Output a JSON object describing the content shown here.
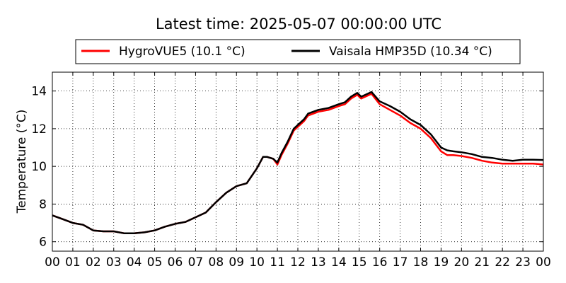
{
  "chart_data": {
    "type": "line",
    "title": "Latest time: 2025-05-07 00:00:00 UTC",
    "xlabel": "",
    "ylabel": "Temperature (°C)",
    "xlim": [
      0,
      24
    ],
    "ylim": [
      5.5,
      15
    ],
    "yticks": [
      "6",
      "8",
      "10",
      "12",
      "14"
    ],
    "xticks": [
      "00",
      "01",
      "02",
      "03",
      "04",
      "05",
      "06",
      "07",
      "08",
      "09",
      "10",
      "11",
      "12",
      "13",
      "14",
      "15",
      "16",
      "17",
      "18",
      "19",
      "20",
      "21",
      "22",
      "23",
      "00"
    ],
    "grid": true,
    "legend_position": "top-center",
    "series": [
      {
        "name": "HygroVUE5 (10.1 °C)",
        "color": "#ff0000",
        "x": [
          0,
          0.5,
          1,
          1.5,
          2,
          2.5,
          3,
          3.5,
          4,
          4.5,
          5,
          5.5,
          6,
          6.5,
          7,
          7.5,
          8,
          8.5,
          9,
          9.5,
          10,
          10.3,
          10.5,
          10.8,
          11,
          11.2,
          11.5,
          11.8,
          12,
          12.3,
          12.5,
          13,
          13.5,
          14,
          14.3,
          14.6,
          14.9,
          15.1,
          15.3,
          15.6,
          16,
          16.5,
          17,
          17.5,
          18,
          18.5,
          19,
          19.3,
          19.6,
          20,
          20.5,
          21,
          21.5,
          22,
          22.5,
          23,
          23.5,
          24
        ],
        "y": [
          7.4,
          7.2,
          7.0,
          6.9,
          6.6,
          6.55,
          6.55,
          6.45,
          6.45,
          6.5,
          6.6,
          6.8,
          6.95,
          7.05,
          7.3,
          7.55,
          8.1,
          8.6,
          8.95,
          9.1,
          9.9,
          10.5,
          10.5,
          10.4,
          10.1,
          10.6,
          11.2,
          11.9,
          12.1,
          12.4,
          12.7,
          12.9,
          13.0,
          13.2,
          13.3,
          13.6,
          13.8,
          13.6,
          13.7,
          13.85,
          13.3,
          13.0,
          12.7,
          12.3,
          12.0,
          11.5,
          10.8,
          10.6,
          10.6,
          10.55,
          10.45,
          10.3,
          10.2,
          10.15,
          10.15,
          10.15,
          10.15,
          10.1
        ]
      },
      {
        "name": "Vaisala HMP35D (10.34 °C)",
        "color": "#000000",
        "x": [
          0,
          0.5,
          1,
          1.5,
          2,
          2.5,
          3,
          3.5,
          4,
          4.5,
          5,
          5.5,
          6,
          6.5,
          7,
          7.5,
          8,
          8.5,
          9,
          9.5,
          10,
          10.3,
          10.5,
          10.8,
          11,
          11.2,
          11.5,
          11.8,
          12,
          12.3,
          12.5,
          13,
          13.5,
          14,
          14.3,
          14.6,
          14.9,
          15.1,
          15.3,
          15.6,
          16,
          16.5,
          17,
          17.5,
          18,
          18.5,
          19,
          19.3,
          19.6,
          20,
          20.5,
          21,
          21.5,
          22,
          22.5,
          23,
          23.5,
          24
        ],
        "y": [
          7.4,
          7.2,
          7.0,
          6.9,
          6.6,
          6.55,
          6.55,
          6.45,
          6.45,
          6.5,
          6.6,
          6.8,
          6.95,
          7.05,
          7.3,
          7.55,
          8.1,
          8.6,
          8.95,
          9.1,
          9.9,
          10.5,
          10.5,
          10.4,
          10.2,
          10.7,
          11.3,
          12.0,
          12.2,
          12.5,
          12.8,
          13.0,
          13.1,
          13.3,
          13.4,
          13.7,
          13.9,
          13.7,
          13.8,
          13.95,
          13.45,
          13.2,
          12.9,
          12.5,
          12.2,
          11.7,
          11.0,
          10.85,
          10.8,
          10.75,
          10.65,
          10.5,
          10.45,
          10.35,
          10.3,
          10.35,
          10.35,
          10.34
        ]
      }
    ]
  }
}
